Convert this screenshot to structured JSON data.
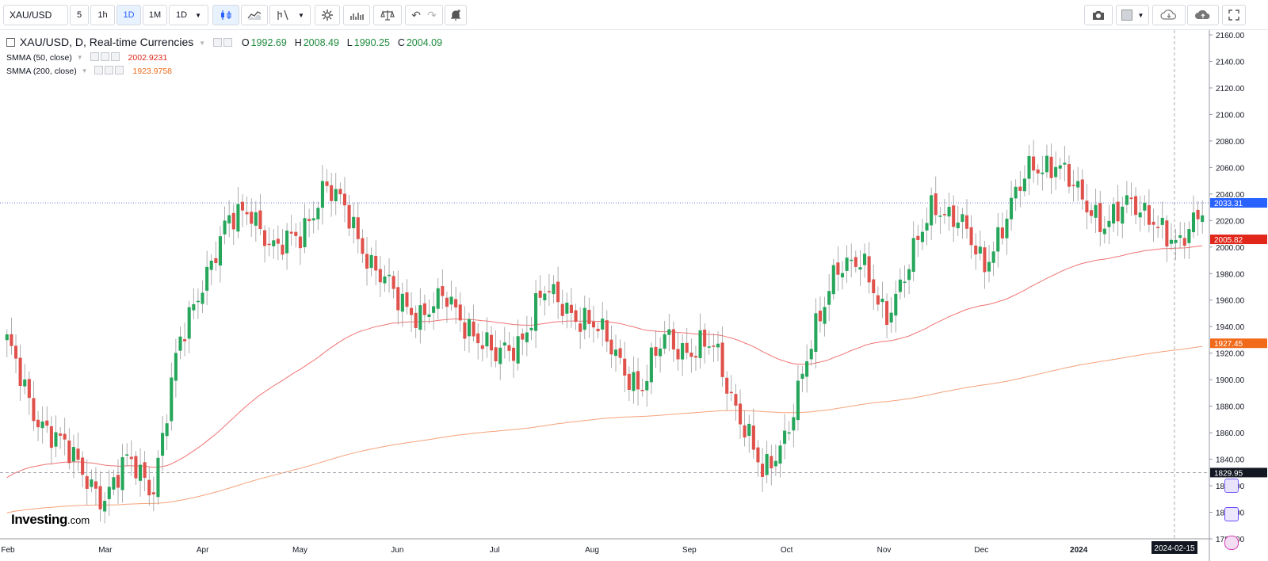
{
  "toolbar": {
    "symbol": "XAU/USD",
    "intervals": [
      "5",
      "1h",
      "1D",
      "1M",
      "1D"
    ],
    "active_interval": "1D"
  },
  "legend": {
    "title": "XAU/USD, D, Real-time Currencies",
    "open_label": "O",
    "open": "1992.69",
    "high_label": "H",
    "high": "2008.49",
    "low_label": "L",
    "low": "1990.25",
    "close_label": "C",
    "close": "2004.09",
    "smma50_label": "SMMA (50, close)",
    "smma50_value": "2002.9231",
    "smma200_label": "SMMA (200, close)",
    "smma200_value": "1923.9758"
  },
  "branding": {
    "logo": "Investing",
    "logo_suffix": ".com"
  },
  "colors": {
    "up": "#26a65b",
    "down": "#e0514b",
    "smma50": "#f07373",
    "smma200": "#f5a27a",
    "price_marker": "#2962ff",
    "smma50_marker": "#e0271a",
    "smma200_marker": "#f06a1a"
  },
  "chart_data": {
    "type": "candlestick",
    "symbol": "XAU/USD",
    "interval": "D",
    "ylim": [
      1780,
      2160
    ],
    "y_ticks": [
      "2160.00",
      "2140.00",
      "2120.00",
      "2100.00",
      "2080.00",
      "2060.00",
      "2040.00",
      "2020.00",
      "2000.00",
      "1980.00",
      "1960.00",
      "1940.00",
      "1920.00",
      "1900.00",
      "1880.00",
      "1860.00",
      "1840.00",
      "1820.00",
      "1800.00",
      "1780.00"
    ],
    "x_ticks": [
      "Feb",
      "Mar",
      "Apr",
      "May",
      "Jun",
      "Jul",
      "Aug",
      "Sep",
      "Oct",
      "Nov",
      "Dec",
      "2024",
      "Feb"
    ],
    "current_date_label": "2024-02-15",
    "markers": [
      {
        "label": "2033.31",
        "value": 2033.31,
        "kind": "last-price"
      },
      {
        "label": "2005.82",
        "value": 2005.82,
        "kind": "smma50"
      },
      {
        "label": "1927.45",
        "value": 1927.45,
        "kind": "smma200"
      },
      {
        "label": "1829.95",
        "value": 1829.95,
        "kind": "horizontal-level"
      }
    ],
    "close_anchors": [
      [
        "Feb",
        1930
      ],
      [
        "Feb",
        1875
      ],
      [
        "Feb",
        1860
      ],
      [
        "Feb",
        1830
      ],
      [
        "Mar",
        1812
      ],
      [
        "Mar",
        1838
      ],
      [
        "Mar",
        1820
      ],
      [
        "Mar",
        1920
      ],
      [
        "Mar",
        1975
      ],
      [
        "Apr",
        2015
      ],
      [
        "Apr",
        2030
      ],
      [
        "Apr",
        1995
      ],
      [
        "May",
        2010
      ],
      [
        "May",
        2045
      ],
      [
        "May",
        2025
      ],
      [
        "May",
        1985
      ],
      [
        "Jun",
        1960
      ],
      [
        "Jun",
        1950
      ],
      [
        "Jun",
        1960
      ],
      [
        "Jun",
        1940
      ],
      [
        "Jul",
        1915
      ],
      [
        "Jul",
        1930
      ],
      [
        "Jul",
        1965
      ],
      [
        "Aug",
        1955
      ],
      [
        "Aug",
        1940
      ],
      [
        "Aug",
        1920
      ],
      [
        "Aug",
        1890
      ],
      [
        "Sep",
        1935
      ],
      [
        "Sep",
        1920
      ],
      [
        "Sep",
        1925
      ],
      [
        "Oct",
        1875
      ],
      [
        "Oct",
        1825
      ],
      [
        "Oct",
        1865
      ],
      [
        "Oct",
        1925
      ],
      [
        "Nov",
        1990
      ],
      [
        "Nov",
        1985
      ],
      [
        "Nov",
        1950
      ],
      [
        "Nov",
        1985
      ],
      [
        "Dec",
        2035
      ],
      [
        "Dec",
        2020
      ],
      [
        "Dec",
        1985
      ],
      [
        "Dec",
        2025
      ],
      [
        "Dec",
        2060
      ],
      [
        "2024",
        2065
      ],
      [
        "2024",
        2035
      ],
      [
        "2024",
        2020
      ],
      [
        "Feb",
        2030
      ],
      [
        "Feb",
        2025
      ],
      [
        "Feb",
        1995
      ],
      [
        "Feb",
        2033
      ]
    ]
  }
}
